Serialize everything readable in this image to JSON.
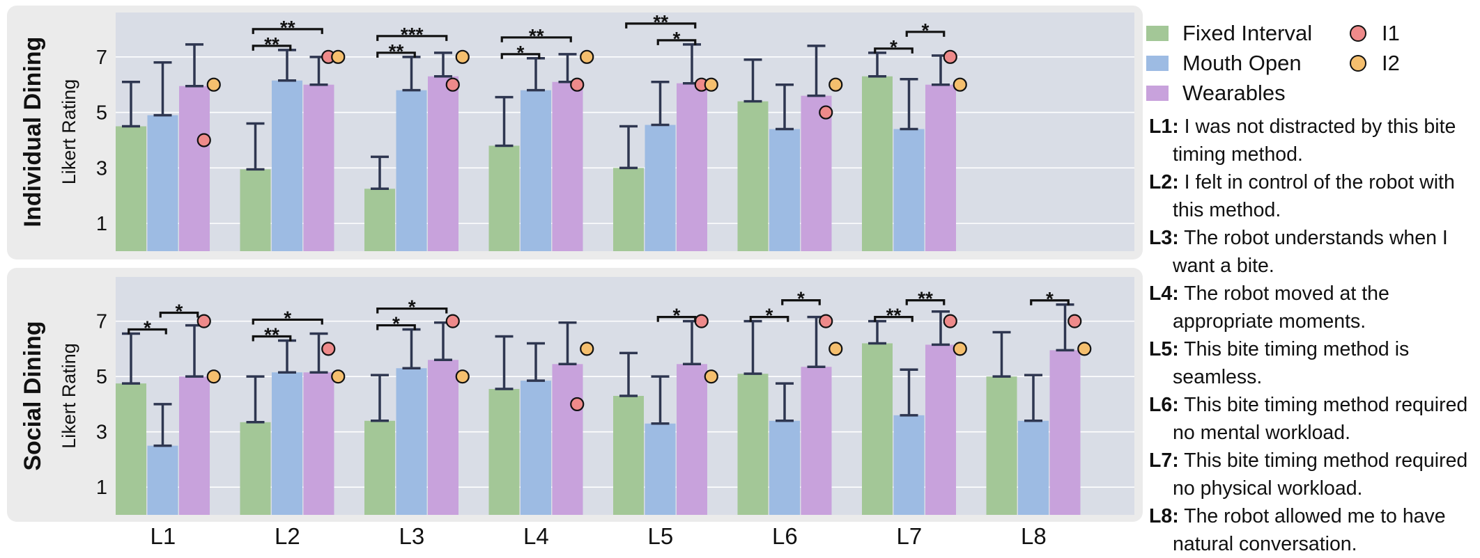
{
  "chart_data": [
    {
      "type": "bar",
      "panel_title": "Individual Dining",
      "ylabel": "Likert Rating",
      "yticks": [
        1,
        3,
        5,
        7
      ],
      "ylim": [
        0,
        8.6
      ],
      "grid": true,
      "categories": [
        "L1",
        "L2",
        "L3",
        "L4",
        "L5",
        "L6",
        "L7"
      ],
      "series": [
        {
          "name": "Fixed Interval",
          "values": [
            4.5,
            2.95,
            2.25,
            3.8,
            3.0,
            5.4,
            6.3
          ],
          "err_upper": [
            6.1,
            4.6,
            3.4,
            5.55,
            4.5,
            6.9,
            7.15
          ]
        },
        {
          "name": "Mouth Open",
          "values": [
            4.9,
            6.15,
            5.8,
            5.8,
            4.55,
            4.4,
            4.4
          ],
          "err_upper": [
            6.8,
            7.25,
            7.0,
            6.95,
            6.1,
            6.0,
            6.2
          ]
        },
        {
          "name": "Wearables",
          "values": [
            5.95,
            6.0,
            6.3,
            6.1,
            6.05,
            5.6,
            6.0
          ],
          "err_upper": [
            7.45,
            7.0,
            7.15,
            7.1,
            7.45,
            7.4,
            7.05
          ]
        }
      ],
      "participants": [
        {
          "name": "I1",
          "values": [
            4.0,
            7.0,
            6.0,
            6.0,
            6.0,
            5.0,
            7.0
          ]
        },
        {
          "name": "I2",
          "values": [
            6.0,
            7.0,
            7.0,
            7.0,
            6.0,
            6.0,
            6.0
          ]
        }
      ],
      "significance": [
        {
          "category": "L2",
          "from": "Fixed Interval",
          "to": "Mouth Open",
          "label": "**",
          "level": 1
        },
        {
          "category": "L2",
          "from": "Fixed Interval",
          "to": "Wearables",
          "label": "**",
          "level": 2
        },
        {
          "category": "L3",
          "from": "Fixed Interval",
          "to": "Mouth Open",
          "label": "**",
          "level": 1
        },
        {
          "category": "L3",
          "from": "Fixed Interval",
          "to": "Wearables",
          "label": "***",
          "level": 2
        },
        {
          "category": "L4",
          "from": "Fixed Interval",
          "to": "Mouth Open",
          "label": "*",
          "level": 1
        },
        {
          "category": "L4",
          "from": "Fixed Interval",
          "to": "Wearables",
          "label": "**",
          "level": 2
        },
        {
          "category": "L5",
          "from": "Mouth Open",
          "to": "Wearables",
          "label": "*",
          "level": 1
        },
        {
          "category": "L5",
          "from": "Fixed Interval",
          "to": "Wearables",
          "label": "**",
          "level": 2
        },
        {
          "category": "L7",
          "from": "Fixed Interval",
          "to": "Mouth Open",
          "label": "*",
          "level": 1
        },
        {
          "category": "L7",
          "from": "Mouth Open",
          "to": "Wearables",
          "label": "*",
          "level": 2
        }
      ]
    },
    {
      "type": "bar",
      "panel_title": "Social Dining",
      "ylabel": "Likert Rating",
      "yticks": [
        1,
        3,
        5,
        7
      ],
      "ylim": [
        0,
        8.6
      ],
      "grid": true,
      "categories": [
        "L1",
        "L2",
        "L3",
        "L4",
        "L5",
        "L6",
        "L7",
        "L8"
      ],
      "series": [
        {
          "name": "Fixed Interval",
          "values": [
            4.75,
            3.35,
            3.4,
            4.55,
            4.3,
            5.1,
            6.2,
            5.0
          ],
          "err_upper": [
            6.55,
            5.0,
            5.05,
            6.45,
            5.85,
            7.0,
            7.0,
            6.6
          ]
        },
        {
          "name": "Mouth Open",
          "values": [
            2.5,
            5.15,
            5.3,
            4.85,
            3.3,
            3.4,
            3.6,
            3.4
          ],
          "err_upper": [
            4.0,
            6.3,
            6.7,
            6.2,
            5.0,
            4.75,
            5.25,
            5.05
          ]
        },
        {
          "name": "Wearables",
          "values": [
            5.0,
            5.15,
            5.6,
            5.45,
            5.45,
            5.35,
            6.15,
            5.95
          ],
          "err_upper": [
            6.85,
            6.55,
            6.95,
            6.95,
            7.0,
            7.15,
            7.35,
            7.6
          ]
        }
      ],
      "participants": [
        {
          "name": "I1",
          "values": [
            7.0,
            6.0,
            7.0,
            4.0,
            7.0,
            7.0,
            7.0,
            7.0
          ]
        },
        {
          "name": "I2",
          "values": [
            5.0,
            5.0,
            5.0,
            6.0,
            5.0,
            6.0,
            6.0,
            6.0
          ]
        }
      ],
      "significance": [
        {
          "category": "L1",
          "from": "Fixed Interval",
          "to": "Mouth Open",
          "label": "*",
          "level": 1
        },
        {
          "category": "L1",
          "from": "Mouth Open",
          "to": "Wearables",
          "label": "*",
          "level": 2
        },
        {
          "category": "L2",
          "from": "Fixed Interval",
          "to": "Mouth Open",
          "label": "**",
          "level": 1
        },
        {
          "category": "L2",
          "from": "Fixed Interval",
          "to": "Wearables",
          "label": "*",
          "level": 2
        },
        {
          "category": "L3",
          "from": "Fixed Interval",
          "to": "Mouth Open",
          "label": "*",
          "level": 1
        },
        {
          "category": "L3",
          "from": "Fixed Interval",
          "to": "Wearables",
          "label": "*",
          "level": 2
        },
        {
          "category": "L5",
          "from": "Mouth Open",
          "to": "Wearables",
          "label": "*",
          "level": 1
        },
        {
          "category": "L6",
          "from": "Fixed Interval",
          "to": "Mouth Open",
          "label": "*",
          "level": 1
        },
        {
          "category": "L6",
          "from": "Mouth Open",
          "to": "Wearables",
          "label": "*",
          "level": 2
        },
        {
          "category": "L7",
          "from": "Fixed Interval",
          "to": "Mouth Open",
          "label": "**",
          "level": 1
        },
        {
          "category": "L7",
          "from": "Mouth Open",
          "to": "Wearables",
          "label": "**",
          "level": 2
        },
        {
          "category": "L8",
          "from": "Mouth Open",
          "to": "Wearables",
          "label": "*",
          "level": 1
        }
      ]
    }
  ],
  "x_categories": [
    "L1",
    "L2",
    "L3",
    "L4",
    "L5",
    "L6",
    "L7",
    "L8"
  ],
  "colors": {
    "fixed_interval": "#a3c797",
    "mouth_open": "#9dbbe3",
    "wearables": "#c8a2dc",
    "i1": "#ee8a8a",
    "i2": "#f5bf6e",
    "panel_bg": "#ebebeb",
    "plot_bg": "#d9dde6",
    "error_bar": "#2e3650"
  },
  "legend": {
    "series": [
      "Fixed Interval",
      "Mouth Open",
      "Wearables"
    ],
    "participants": [
      "I1",
      "I2"
    ]
  },
  "questions": [
    {
      "key": "L1:",
      "text": "I was not distracted by this bite timing method."
    },
    {
      "key": "L2:",
      "text": "I felt in control of the robot with this method."
    },
    {
      "key": "L3:",
      "text": "The robot understands when I want a bite."
    },
    {
      "key": "L4:",
      "text": "The robot moved at the appropriate moments."
    },
    {
      "key": "L5:",
      "text": "This bite timing method is seamless."
    },
    {
      "key": "L6:",
      "text": "This bite timing method required no mental workload."
    },
    {
      "key": "L7:",
      "text": "This bite timing method required no physical workload."
    },
    {
      "key": "L8:",
      "text": "The robot allowed me to have natural conversation."
    }
  ]
}
